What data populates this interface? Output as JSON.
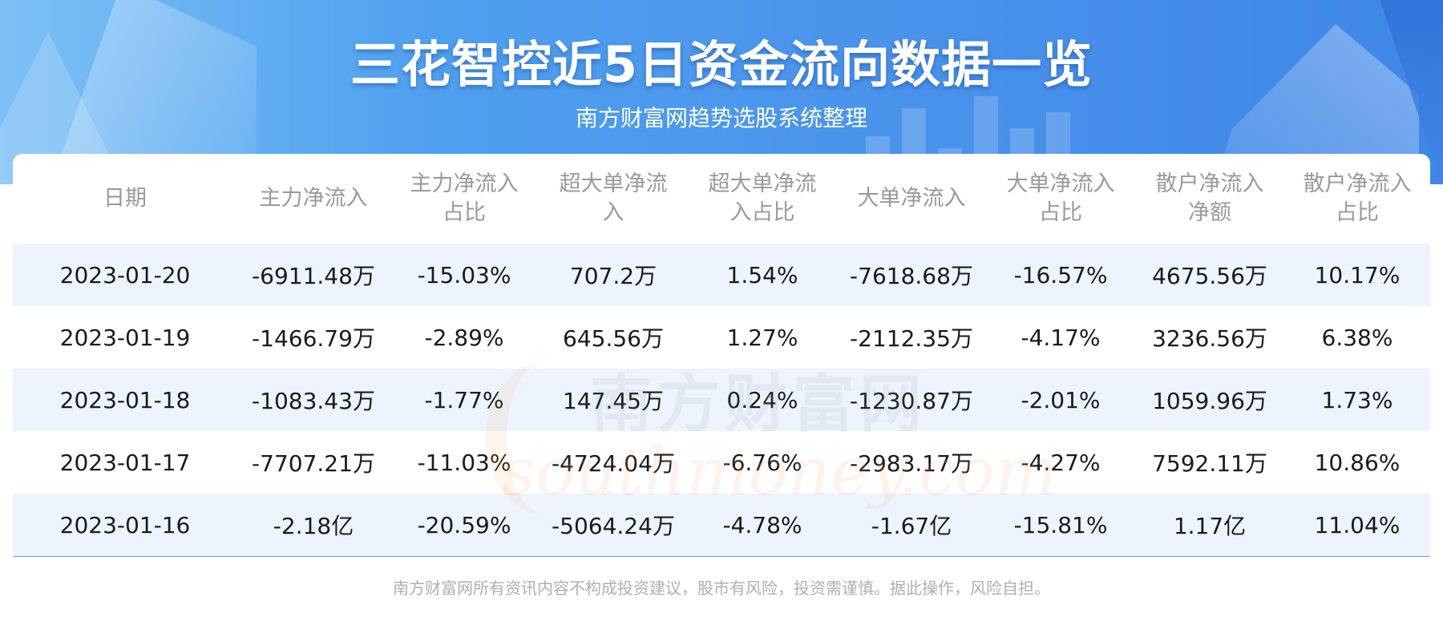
{
  "header": {
    "title": "三花智控近5日资金流向数据一览",
    "subtitle": "南方财富网趋势选股系统整理"
  },
  "watermark": {
    "cn": "南方财富网",
    "en": "southmoney.com"
  },
  "table": {
    "columns": [
      {
        "line1": "日期",
        "line2": ""
      },
      {
        "line1": "主力净流入",
        "line2": ""
      },
      {
        "line1": "主力净流入",
        "line2": "占比"
      },
      {
        "line1": "超大单净流",
        "line2": "入"
      },
      {
        "line1": "超大单净流",
        "line2": "入占比"
      },
      {
        "line1": "大单净流入",
        "line2": ""
      },
      {
        "line1": "大单净流入",
        "line2": "占比"
      },
      {
        "line1": "散户净流入",
        "line2": "净额"
      },
      {
        "line1": "散户净流入",
        "line2": "占比"
      }
    ],
    "rows": [
      [
        "2023-01-20",
        "-6911.48万",
        "-15.03%",
        "707.2万",
        "1.54%",
        "-7618.68万",
        "-16.57%",
        "4675.56万",
        "10.17%"
      ],
      [
        "2023-01-19",
        "-1466.79万",
        "-2.89%",
        "645.56万",
        "1.27%",
        "-2112.35万",
        "-4.17%",
        "3236.56万",
        "6.38%"
      ],
      [
        "2023-01-18",
        "-1083.43万",
        "-1.77%",
        "147.45万",
        "0.24%",
        "-1230.87万",
        "-2.01%",
        "1059.96万",
        "1.73%"
      ],
      [
        "2023-01-17",
        "-7707.21万",
        "-11.03%",
        "-4724.04万",
        "-6.76%",
        "-2983.17万",
        "-4.27%",
        "7592.11万",
        "10.86%"
      ],
      [
        "2023-01-16",
        "-2.18亿",
        "-20.59%",
        "-5064.24万",
        "-4.78%",
        "-1.67亿",
        "-15.81%",
        "1.17亿",
        "11.04%"
      ]
    ]
  },
  "footer": {
    "disclaimer": "南方财富网所有资讯内容不构成投资建议，股市有风险，投资需谨慎。据此操作，风险自担。"
  },
  "colors": {
    "banner_start": "#7cc0f5",
    "banner_end": "#3f86e6",
    "row_highlight": "#edf4fe",
    "header_text": "#9a9a9a",
    "cell_text": "#1a1a1a"
  }
}
